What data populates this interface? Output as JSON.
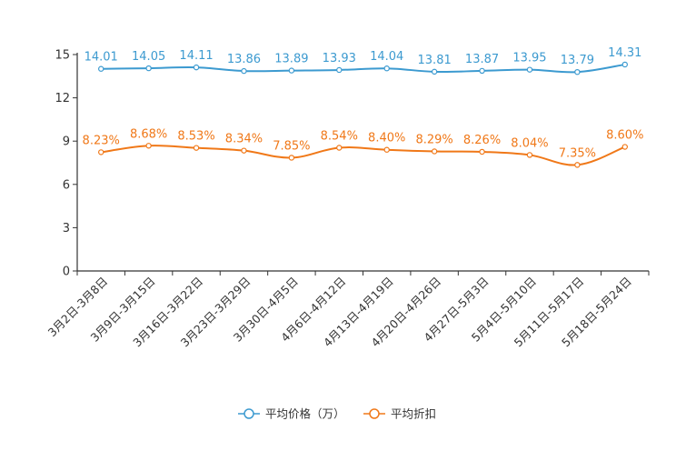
{
  "chart_data": {
    "type": "line",
    "title": "",
    "xlabel": "",
    "ylabel": "",
    "ylim": [
      0,
      15
    ],
    "yticks": [
      0,
      3,
      6,
      9,
      12,
      15
    ],
    "grid": false,
    "legend_position": "bottom-center",
    "categories": [
      "3月2日-3月8日",
      "3月9日-3月15日",
      "3月16日-3月22日",
      "3月23日-3月29日",
      "3月30日-4月5日",
      "4月6日-4月12日",
      "4月13日-4月19日",
      "4月20日-4月26日",
      "4月27日-5月3日",
      "5月4日-5月10日",
      "5月11日-5月17日",
      "5月18日-5月24日"
    ],
    "series": [
      {
        "name": "平均价格（万）",
        "color": "#3c9ad0",
        "values": [
          14.01,
          14.05,
          14.11,
          13.86,
          13.89,
          13.93,
          14.04,
          13.81,
          13.87,
          13.95,
          13.79,
          14.31
        ],
        "labels": [
          "14.01",
          "14.05",
          "14.11",
          "13.86",
          "13.89",
          "13.93",
          "14.04",
          "13.81",
          "13.87",
          "13.95",
          "13.79",
          "14.31"
        ]
      },
      {
        "name": "平均折扣",
        "color": "#f07818",
        "values": [
          8.23,
          8.68,
          8.53,
          8.34,
          7.85,
          8.54,
          8.4,
          8.29,
          8.26,
          8.04,
          7.35,
          8.6
        ],
        "labels": [
          "8.23%",
          "8.68%",
          "8.53%",
          "8.34%",
          "7.85%",
          "8.54%",
          "8.40%",
          "8.29%",
          "8.26%",
          "8.04%",
          "7.35%",
          "8.60%"
        ]
      }
    ]
  }
}
